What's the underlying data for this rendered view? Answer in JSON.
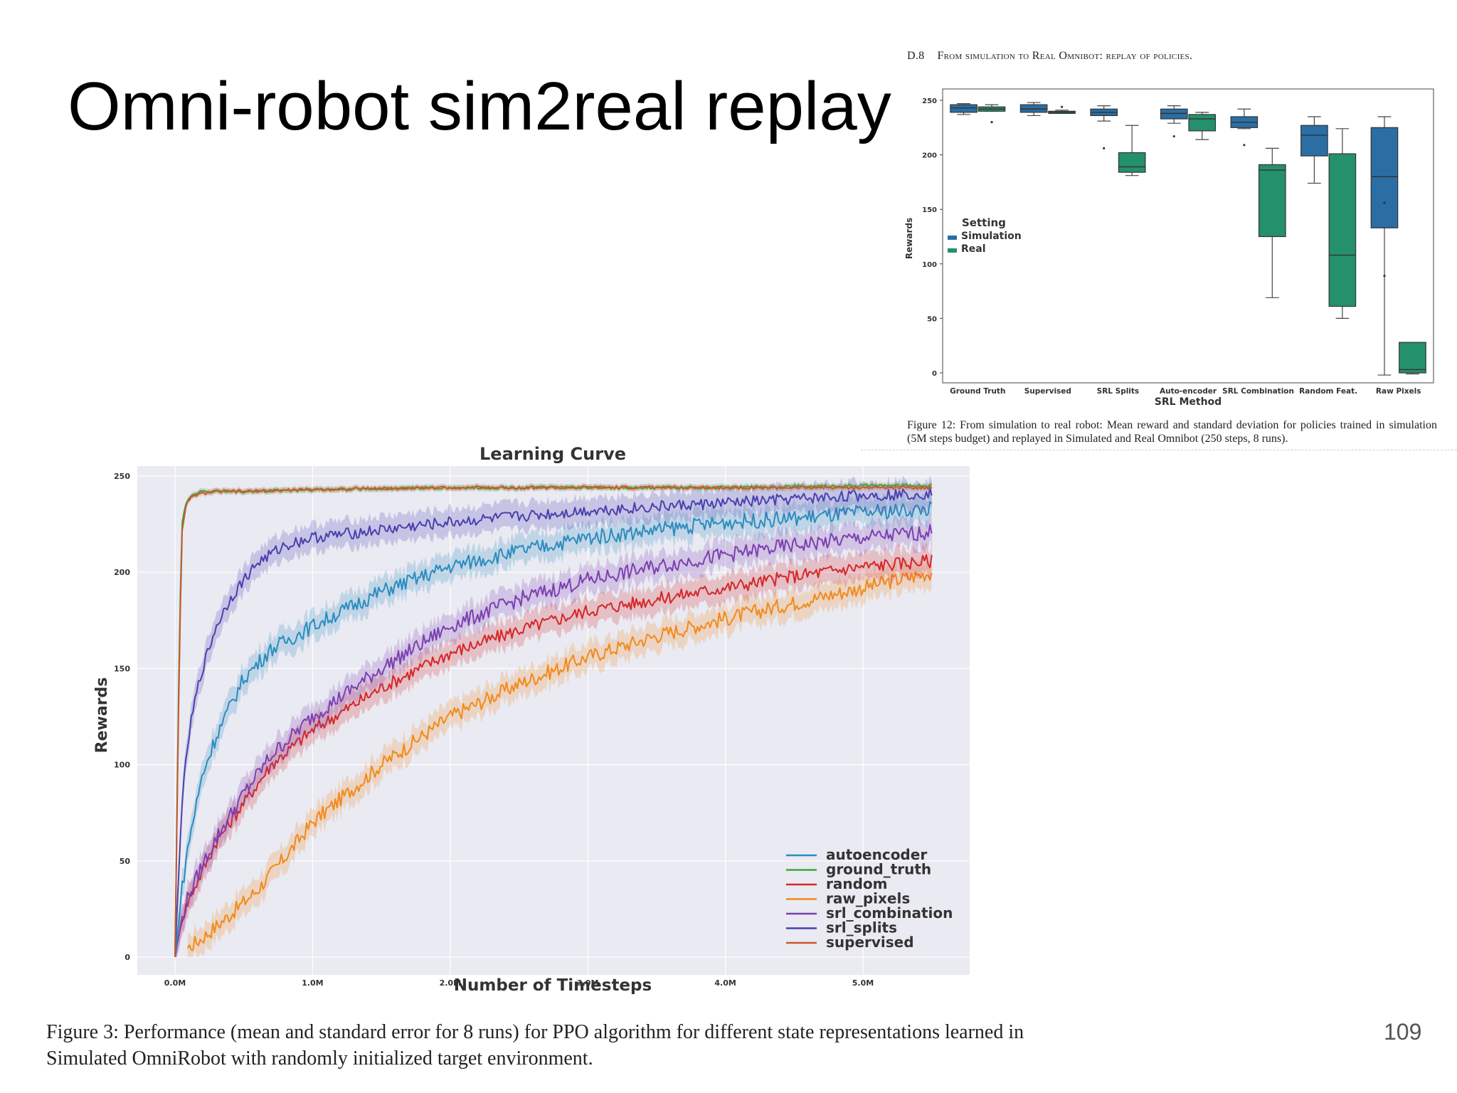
{
  "slide": {
    "title": "Omni-robot sim2real replay",
    "page_number": "109"
  },
  "paper_section": {
    "number": "D.8",
    "heading": "From simulation to Real Omnibot: replay of policies."
  },
  "figure12_caption": "Figure 12: From simulation to real robot: Mean reward and standard deviation for policies trained in simulation (5M steps budget) and replayed in Simulated and Real Omnibot (250 steps, 8 runs).",
  "figure3_caption": "Figure 3: Performance (mean and standard error for 8 runs) for PPO algorithm for different state representations learned in Simulated OmniRobot with randomly initialized target environment.",
  "colors": {
    "simulation": "#2a6ea4",
    "real": "#24906c",
    "autoencoder": "#2b8cbe",
    "ground_truth": "#3ba83b",
    "random": "#d62728",
    "raw_pixels": "#f28a1a",
    "srl_combination": "#7d3fb2",
    "srl_splits": "#4a40b0",
    "supervised": "#c8582f"
  },
  "chart_data": [
    {
      "type": "box",
      "title": "",
      "xlabel": "SRL Method",
      "ylabel": "Rewards",
      "ylim": [
        0,
        260
      ],
      "yticks": [
        0,
        50,
        100,
        150,
        200,
        250
      ],
      "categories": [
        "Ground Truth",
        "Supervised",
        "SRL Splits",
        "Auto-encoder",
        "SRL Combination",
        "Random Feat.",
        "Raw Pixels"
      ],
      "legend": {
        "title": "Setting",
        "position": "center-left",
        "entries": [
          "Simulation",
          "Real"
        ]
      },
      "series": [
        {
          "name": "Simulation",
          "boxes": [
            {
              "whisker_low": 237,
              "q1": 239,
              "median": 243,
              "q3": 246,
              "whisker_high": 247,
              "outliers": []
            },
            {
              "whisker_low": 236,
              "q1": 239,
              "median": 242,
              "q3": 246,
              "whisker_high": 248,
              "outliers": []
            },
            {
              "whisker_low": 231,
              "q1": 236,
              "median": 239,
              "q3": 242,
              "whisker_high": 245,
              "outliers": [
                206
              ]
            },
            {
              "whisker_low": 229,
              "q1": 233,
              "median": 238,
              "q3": 242,
              "whisker_high": 245,
              "outliers": [
                217
              ]
            },
            {
              "whisker_low": 224,
              "q1": 225,
              "median": 230,
              "q3": 235,
              "whisker_high": 242,
              "outliers": [
                209
              ]
            },
            {
              "whisker_low": 174,
              "q1": 199,
              "median": 218,
              "q3": 227,
              "whisker_high": 235,
              "outliers": []
            },
            {
              "whisker_low": -2,
              "q1": 133,
              "median": 180,
              "q3": 225,
              "whisker_high": 235,
              "outliers": [
                156,
                89
              ]
            }
          ]
        },
        {
          "name": "Real",
          "boxes": [
            {
              "whisker_low": 240,
              "q1": 240,
              "median": 242,
              "q3": 244,
              "whisker_high": 246,
              "outliers": [
                230
              ]
            },
            {
              "whisker_low": 238,
              "q1": 238,
              "median": 239,
              "q3": 240,
              "whisker_high": 241,
              "outliers": [
                244
              ]
            },
            {
              "whisker_low": 181,
              "q1": 184,
              "median": 189,
              "q3": 202,
              "whisker_high": 227,
              "outliers": []
            },
            {
              "whisker_low": 214,
              "q1": 222,
              "median": 233,
              "q3": 237,
              "whisker_high": 239,
              "outliers": []
            },
            {
              "whisker_low": 69,
              "q1": 125,
              "median": 186,
              "q3": 191,
              "whisker_high": 206,
              "outliers": []
            },
            {
              "whisker_low": 50,
              "q1": 61,
              "median": 108,
              "q3": 201,
              "whisker_high": 224,
              "outliers": []
            },
            {
              "whisker_low": -1,
              "q1": 0,
              "median": 3,
              "q3": 28,
              "whisker_high": 28,
              "outliers": []
            }
          ]
        }
      ]
    },
    {
      "type": "line",
      "title": "Learning Curve",
      "xlabel": "Number of Timesteps",
      "ylabel": "Rewards",
      "xlim": [
        0,
        5.5
      ],
      "ylim": [
        0,
        250
      ],
      "xtick_labels": [
        "0.0M",
        "1.0M",
        "2.0M",
        "3.0M",
        "4.0M",
        "5.0M"
      ],
      "xticks": [
        0,
        1,
        2,
        3,
        4,
        5
      ],
      "yticks": [
        0,
        50,
        100,
        150,
        200,
        250
      ],
      "legend_position": "lower-right",
      "grid": true,
      "series": [
        {
          "name": "autoencoder",
          "x": [
            0,
            0.05,
            0.1,
            0.2,
            0.3,
            0.5,
            0.7,
            1.0,
            1.5,
            2.0,
            2.5,
            3.0,
            3.5,
            4.0,
            4.5,
            5.0,
            5.5
          ],
          "y": [
            0,
            35,
            60,
            95,
            115,
            145,
            160,
            172,
            190,
            203,
            211,
            218,
            222,
            226,
            228,
            231,
            233
          ]
        },
        {
          "name": "ground_truth",
          "x": [
            0,
            0.03,
            0.05,
            0.08,
            0.1,
            0.15,
            0.2,
            0.3,
            0.5,
            1.0,
            2.0,
            3.0,
            4.0,
            5.0,
            5.5
          ],
          "y": [
            0,
            160,
            225,
            236,
            239,
            241,
            242,
            242,
            242,
            243,
            244,
            244,
            244,
            245,
            245
          ]
        },
        {
          "name": "random",
          "x": [
            0,
            0.05,
            0.1,
            0.2,
            0.3,
            0.5,
            0.7,
            1.0,
            1.5,
            2.0,
            2.5,
            3.0,
            3.5,
            4.0,
            4.5,
            5.0,
            5.5
          ],
          "y": [
            0,
            20,
            30,
            45,
            60,
            80,
            100,
            118,
            140,
            158,
            170,
            180,
            186,
            192,
            198,
            203,
            206
          ]
        },
        {
          "name": "raw_pixels",
          "x": [
            0,
            0.1,
            0.2,
            0.4,
            0.6,
            0.8,
            1.0,
            1.5,
            2.0,
            2.5,
            3.0,
            3.5,
            4.0,
            4.5,
            5.0,
            5.5
          ],
          "y": [
            0,
            5,
            10,
            22,
            35,
            52,
            70,
            100,
            125,
            142,
            156,
            167,
            176,
            184,
            192,
            200
          ]
        },
        {
          "name": "srl_combination",
          "x": [
            0,
            0.05,
            0.1,
            0.2,
            0.3,
            0.5,
            0.7,
            1.0,
            1.5,
            2.0,
            2.5,
            3.0,
            3.5,
            4.0,
            4.5,
            5.0,
            5.5
          ],
          "y": [
            0,
            20,
            32,
            48,
            62,
            85,
            105,
            125,
            150,
            172,
            186,
            196,
            203,
            209,
            214,
            218,
            221
          ]
        },
        {
          "name": "srl_splits",
          "x": [
            0,
            0.05,
            0.1,
            0.15,
            0.2,
            0.3,
            0.4,
            0.5,
            0.6,
            0.8,
            1.0,
            1.5,
            2.0,
            2.5,
            3.0,
            3.5,
            4.0,
            4.5,
            5.0,
            5.5
          ],
          "y": [
            0,
            80,
            115,
            135,
            150,
            172,
            186,
            196,
            205,
            214,
            218,
            222,
            226,
            229,
            232,
            234,
            236,
            238,
            240,
            241
          ]
        },
        {
          "name": "supervised",
          "x": [
            0,
            0.03,
            0.05,
            0.08,
            0.1,
            0.15,
            0.2,
            0.3,
            0.5,
            1.0,
            2.0,
            3.0,
            4.0,
            5.0,
            5.5
          ],
          "y": [
            0,
            150,
            220,
            234,
            238,
            240,
            241,
            242,
            242,
            243,
            244,
            244,
            244,
            244,
            244
          ]
        }
      ]
    }
  ]
}
